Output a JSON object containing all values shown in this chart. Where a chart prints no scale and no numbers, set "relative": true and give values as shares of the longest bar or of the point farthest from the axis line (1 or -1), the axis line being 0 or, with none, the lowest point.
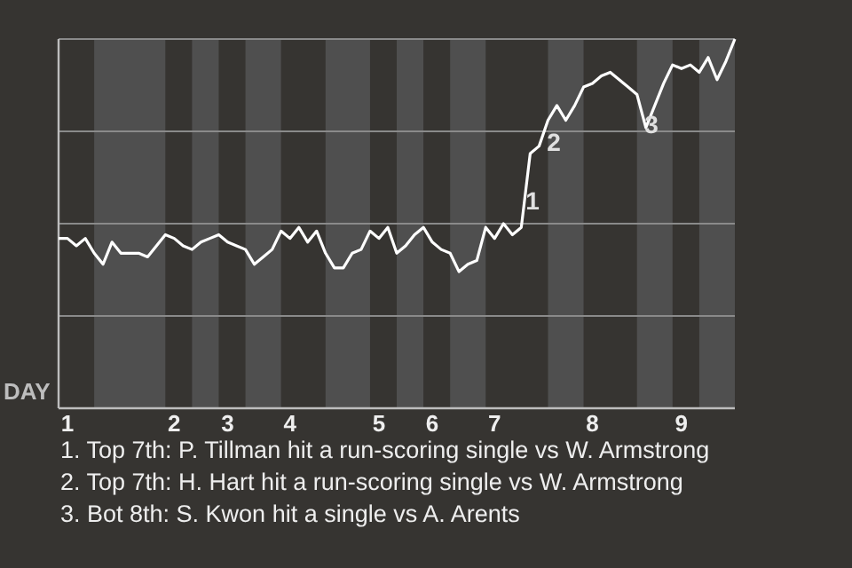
{
  "chart_data": {
    "type": "line",
    "relative": true,
    "grid": true,
    "marker": "none",
    "line_style": "solid",
    "ylabel": "DAY",
    "categories": [
      null,
      "1",
      null,
      null,
      null,
      null,
      null,
      null,
      null,
      null,
      null,
      null,
      null,
      "2",
      null,
      null,
      null,
      null,
      null,
      "3",
      null,
      null,
      null,
      null,
      null,
      null,
      "4",
      null,
      null,
      null,
      null,
      null,
      null,
      null,
      null,
      null,
      "5",
      null,
      null,
      null,
      null,
      null,
      "6",
      null,
      null,
      null,
      null,
      null,
      null,
      "7",
      null,
      null,
      null,
      null,
      null,
      null,
      null,
      null,
      null,
      null,
      "8",
      null,
      null,
      null,
      null,
      null,
      null,
      null,
      null,
      null,
      "9",
      null,
      null,
      null,
      null,
      null,
      null
    ],
    "series": [
      {
        "color": "#ffffff",
        "values": [
          0.46,
          0.46,
          0.44,
          0.46,
          0.42,
          0.39,
          0.45,
          0.42,
          0.42,
          0.42,
          0.41,
          0.44,
          0.47,
          0.46,
          0.44,
          0.43,
          0.45,
          0.46,
          0.47,
          0.45,
          0.44,
          0.43,
          0.39,
          0.41,
          0.43,
          0.48,
          0.46,
          0.49,
          0.45,
          0.48,
          0.42,
          0.38,
          0.38,
          0.42,
          0.43,
          0.48,
          0.46,
          0.49,
          0.42,
          0.44,
          0.47,
          0.49,
          0.45,
          0.43,
          0.42,
          0.37,
          0.39,
          0.4,
          0.49,
          0.46,
          0.5,
          0.47,
          0.49,
          0.69,
          0.71,
          0.78,
          0.82,
          0.78,
          0.82,
          0.87,
          0.88,
          0.9,
          0.91,
          0.89,
          0.87,
          0.85,
          0.76,
          0.82,
          0.88,
          0.93,
          0.92,
          0.93,
          0.91,
          0.95,
          0.89,
          0.94,
          1.0
        ],
        "line_style": "solid"
      }
    ],
    "annotations": [
      "1",
      "2",
      "3",
      "1. Top 7th: P. Tillman hit a run-scoring single vs W. Armstrong",
      "2. Top 7th: H. Hart hit a run-scoring single vs W. Armstrong",
      "3. Bot 8th: S. Kwon hit a single vs A. Arents"
    ]
  }
}
